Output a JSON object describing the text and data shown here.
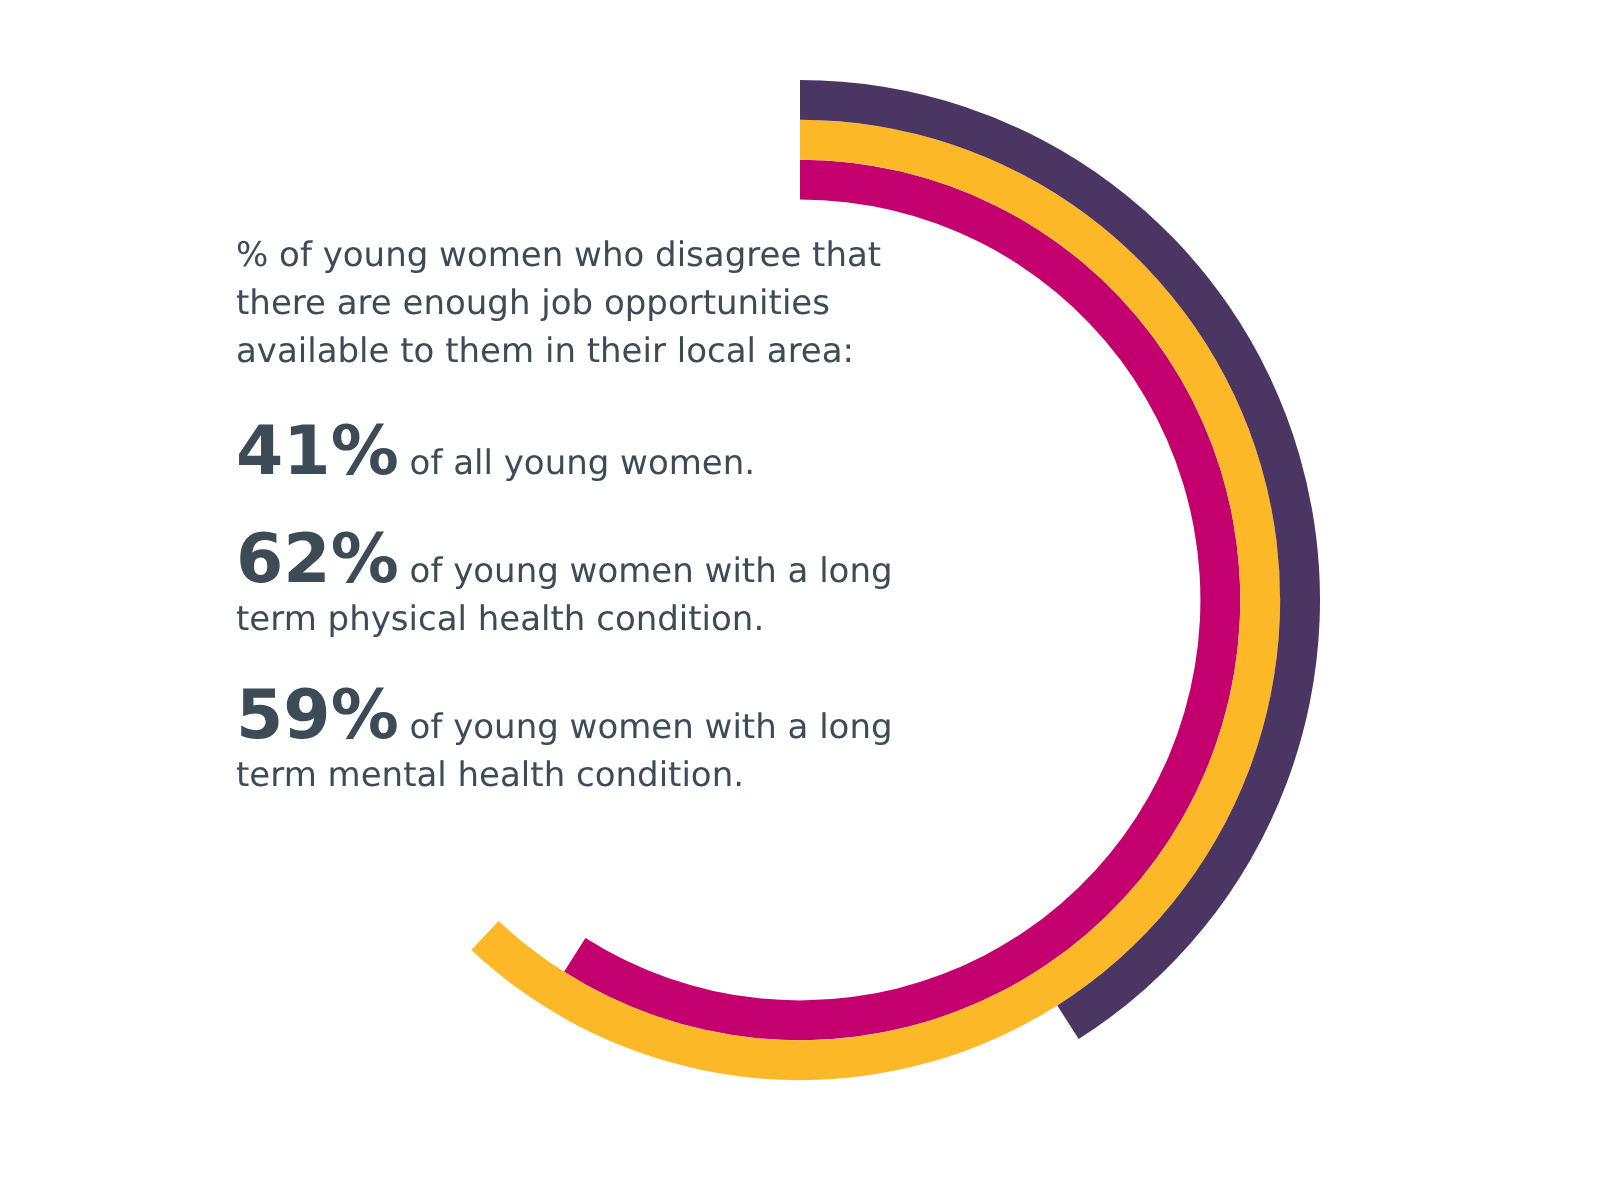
{
  "chart_data": {
    "type": "other",
    "title": "% of young women who disagree that there are enough job opportunities available to them in their local area:",
    "categories": [
      "of all young women.",
      "of young women with a long term physical health condition.",
      "of young women with a long term mental health condition."
    ],
    "values": [
      41,
      62,
      59
    ],
    "value_labels": [
      "41%",
      "62%",
      "59%"
    ],
    "colors": [
      "#4b3563",
      "#fdb827",
      "#c4006f"
    ]
  }
}
